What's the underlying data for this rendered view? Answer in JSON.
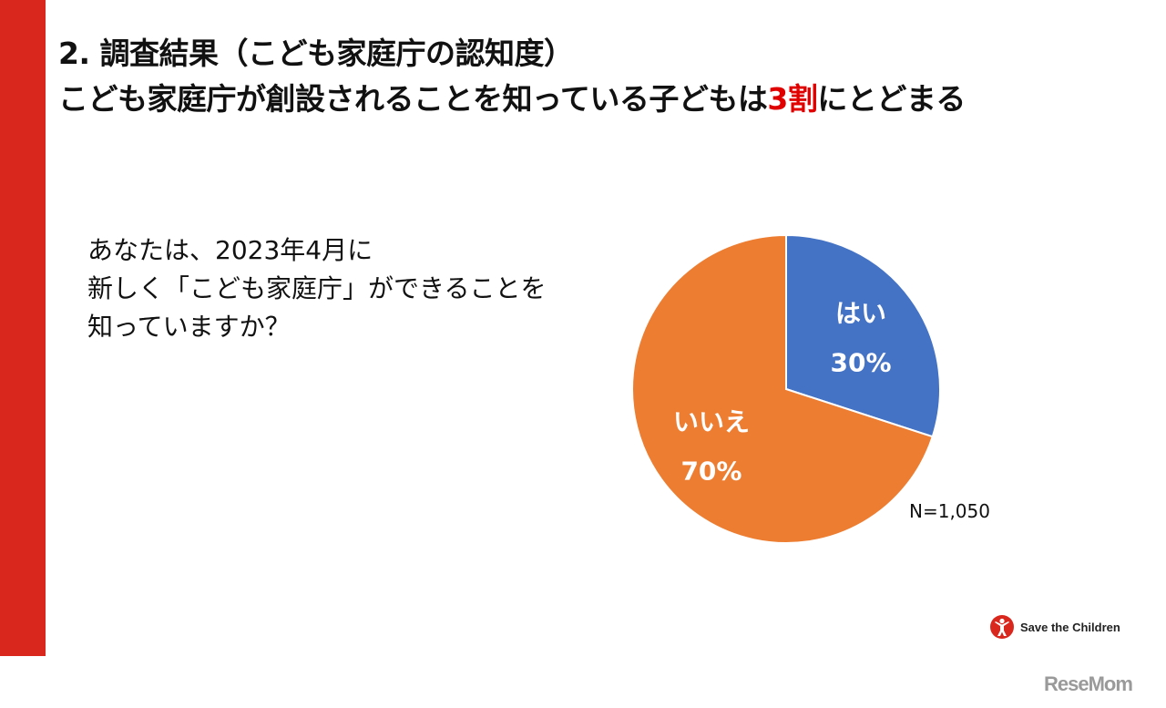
{
  "header": {
    "line1": "2. 調査結果（こども家庭庁の認知度）",
    "line2_before": "こども家庭庁が創設されることを知っている子どもは",
    "line2_accent": "3割",
    "line2_after": "にとどまる"
  },
  "question": {
    "line1": "あなたは、2023年4月に",
    "line2": "新しく「こども家庭庁」ができることを",
    "line3": "知っていますか？"
  },
  "chart_data": {
    "type": "pie",
    "categories": [
      "はい",
      "いいえ"
    ],
    "values": [
      30,
      70
    ],
    "labels": [
      "30%",
      "70%"
    ],
    "colors": [
      "#4472c4",
      "#ed7d31"
    ],
    "annotation": "N=1,050"
  },
  "logo": {
    "text": "Save the Children",
    "color": "#d9271d"
  },
  "watermark": {
    "text": "ReseMom"
  },
  "colors": {
    "accent_bar": "#d9271d",
    "highlight": "#e00000"
  }
}
